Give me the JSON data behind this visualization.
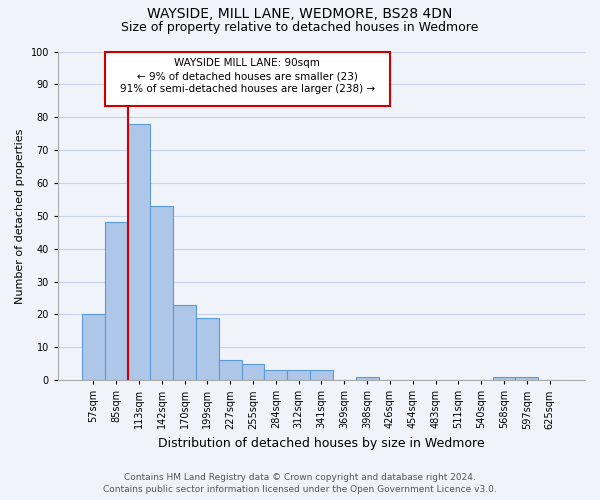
{
  "title": "WAYSIDE, MILL LANE, WEDMORE, BS28 4DN",
  "subtitle": "Size of property relative to detached houses in Wedmore",
  "xlabel": "Distribution of detached houses by size in Wedmore",
  "ylabel": "Number of detached properties",
  "categories": [
    "57sqm",
    "85sqm",
    "113sqm",
    "142sqm",
    "170sqm",
    "199sqm",
    "227sqm",
    "255sqm",
    "284sqm",
    "312sqm",
    "341sqm",
    "369sqm",
    "398sqm",
    "426sqm",
    "454sqm",
    "483sqm",
    "511sqm",
    "540sqm",
    "568sqm",
    "597sqm",
    "625sqm"
  ],
  "values": [
    20,
    48,
    78,
    53,
    23,
    19,
    6,
    5,
    3,
    3,
    3,
    0,
    1,
    0,
    0,
    0,
    0,
    0,
    1,
    1,
    0
  ],
  "bar_color": "#aec6e8",
  "bar_edge_color": "#5b9bd5",
  "bar_edge_width": 0.8,
  "ylim": [
    0,
    100
  ],
  "yticks": [
    0,
    10,
    20,
    30,
    40,
    50,
    60,
    70,
    80,
    90,
    100
  ],
  "annotation_text_line1": "WAYSIDE MILL LANE: 90sqm",
  "annotation_text_line2": "← 9% of detached houses are smaller (23)",
  "annotation_text_line3": "91% of semi-detached houses are larger (238) →",
  "annotation_box_color": "#ffffff",
  "annotation_box_edge_color": "#cc0000",
  "red_line_color": "#cc0000",
  "footnote_line1": "Contains HM Land Registry data © Crown copyright and database right 2024.",
  "footnote_line2": "Contains public sector information licensed under the Open Government Licence v3.0.",
  "background_color": "#f0f4fa",
  "grid_color": "#c8d4e8",
  "title_fontsize": 10,
  "subtitle_fontsize": 9,
  "xlabel_fontsize": 9,
  "ylabel_fontsize": 8,
  "tick_fontsize": 7,
  "footnote_fontsize": 6.5
}
